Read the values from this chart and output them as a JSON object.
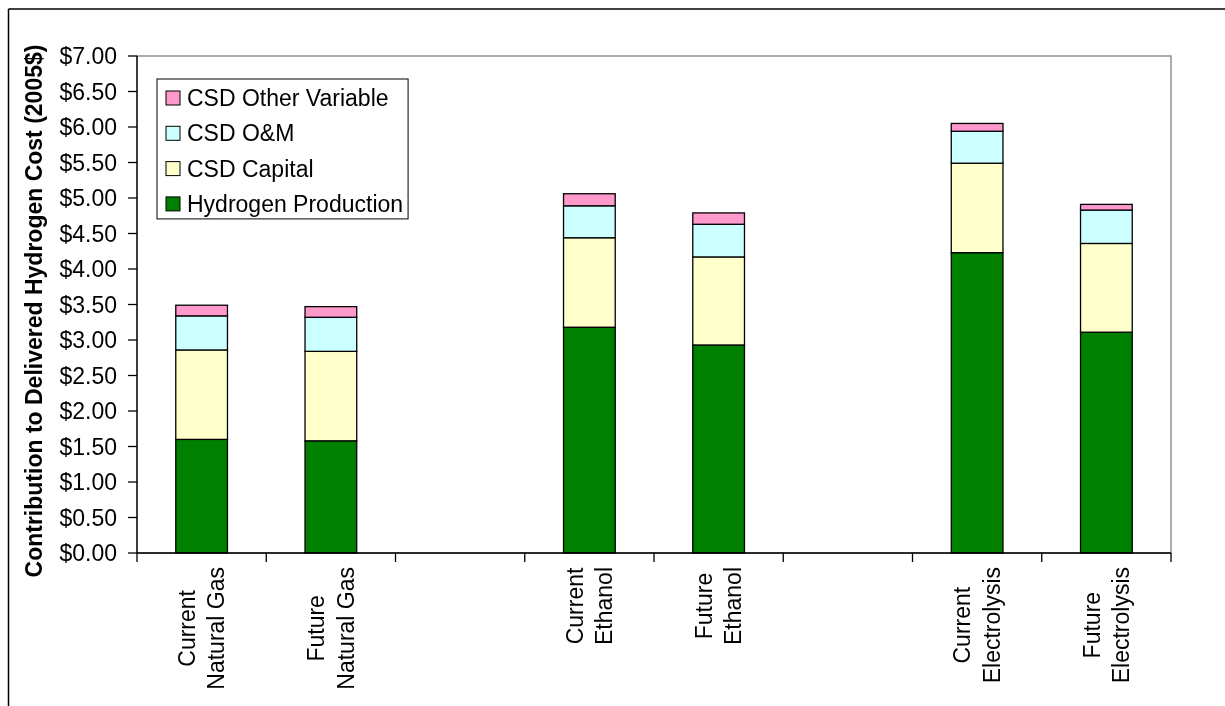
{
  "chart_data": {
    "type": "bar",
    "stacked": true,
    "ylabel": "Contribution to Delivered Hydrogen Cost (2005$)",
    "categories": [
      "Current Natural Gas",
      "Future Natural Gas",
      null,
      "Current Ethanol",
      "Future Ethanol",
      null,
      "Current Electrolysis",
      "Future Electrolysis"
    ],
    "series": [
      {
        "name": "Hydrogen Production",
        "color": "#008000",
        "values": [
          1.6,
          1.58,
          null,
          3.18,
          2.93,
          null,
          4.23,
          3.11
        ]
      },
      {
        "name": "CSD Capital",
        "color": "#ffffcc",
        "values": [
          1.26,
          1.26,
          null,
          1.26,
          1.24,
          null,
          1.26,
          1.25
        ]
      },
      {
        "name": "CSD O&M",
        "color": "#ccffff",
        "values": [
          0.48,
          0.48,
          null,
          0.45,
          0.46,
          null,
          0.45,
          0.47
        ]
      },
      {
        "name": "CSD Other Variable",
        "color": "#ff99cc",
        "values": [
          0.15,
          0.15,
          null,
          0.17,
          0.16,
          null,
          0.11,
          0.08
        ]
      }
    ],
    "ylim": [
      0,
      7
    ],
    "yticks": [
      {
        "value": 0,
        "label": "$0.00"
      },
      {
        "value": 0.5,
        "label": "$0.50"
      },
      {
        "value": 1,
        "label": "$1.00"
      },
      {
        "value": 1.5,
        "label": "$1.50"
      },
      {
        "value": 2,
        "label": "$2.00"
      },
      {
        "value": 2.5,
        "label": "$2.50"
      },
      {
        "value": 3,
        "label": "$3.00"
      },
      {
        "value": 3.5,
        "label": "$3.50"
      },
      {
        "value": 4,
        "label": "$4.00"
      },
      {
        "value": 4.5,
        "label": "$4.50"
      },
      {
        "value": 5,
        "label": "$5.00"
      },
      {
        "value": 5.5,
        "label": "$5.50"
      },
      {
        "value": 6,
        "label": "$6.00"
      },
      {
        "value": 6.5,
        "label": "$6.50"
      },
      {
        "value": 7,
        "label": "$7.00"
      }
    ],
    "legend": "top left"
  }
}
